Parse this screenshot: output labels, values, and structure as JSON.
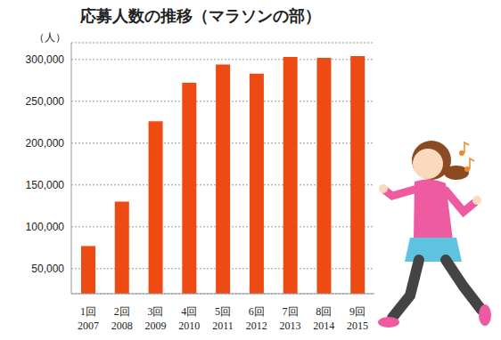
{
  "chart_data": {
    "type": "bar",
    "title": "応募人数の推移（マラソンの部）",
    "ylabel": "（人）",
    "categories": [
      "1回\n2007",
      "2回\n2008",
      "3回\n2009",
      "4回\n2010",
      "5回\n2011",
      "6回\n2012",
      "7回\n2013",
      "8回\n2014",
      "9回\n2015"
    ],
    "values": [
      77000,
      130000,
      226000,
      272000,
      294000,
      283000,
      303000,
      302000,
      304000
    ],
    "color": "#ee4a14",
    "ylim": [
      20000,
      320000
    ],
    "yticks": [
      {
        "value": 50000,
        "label": "50,000"
      },
      {
        "value": 100000,
        "label": "100,000"
      },
      {
        "value": 150000,
        "label": "150,000"
      },
      {
        "value": 200000,
        "label": "200,000"
      },
      {
        "value": 250000,
        "label": "250,000"
      },
      {
        "value": 300000,
        "label": "300,000"
      }
    ],
    "grid": true
  }
}
